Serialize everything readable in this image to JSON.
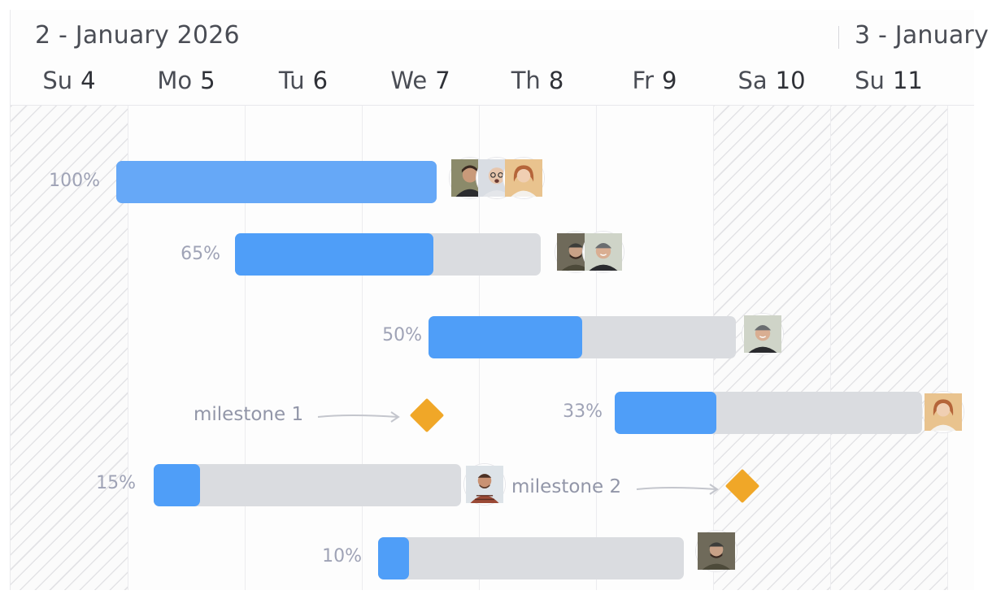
{
  "header": {
    "weeks": [
      {
        "label": "2 - January 2026"
      },
      {
        "label": "3 - January"
      }
    ],
    "days": [
      {
        "name": "Su",
        "num": "4",
        "weekend": true
      },
      {
        "name": "Mo",
        "num": "5",
        "weekend": false
      },
      {
        "name": "Tu",
        "num": "6",
        "weekend": false
      },
      {
        "name": "We",
        "num": "7",
        "weekend": false
      },
      {
        "name": "Th",
        "num": "8",
        "weekend": false
      },
      {
        "name": "Fr",
        "num": "9",
        "weekend": false
      },
      {
        "name": "Sa",
        "num": "10",
        "weekend": true
      },
      {
        "name": "Su",
        "num": "11",
        "weekend": true
      }
    ]
  },
  "tasks": [
    {
      "progress_label": "100%",
      "progress": 1.0,
      "avatars": [
        "avatar-dark-hair-man",
        "avatar-bald-glasses-man",
        "avatar-smiling-woman"
      ]
    },
    {
      "progress_label": "65%",
      "progress": 0.65,
      "avatars": [
        "avatar-beanie-man",
        "avatar-beanie-man-2"
      ]
    },
    {
      "progress_label": "50%",
      "progress": 0.5,
      "avatars": [
        "avatar-beanie-man-2"
      ]
    },
    {
      "progress_label": "33%",
      "progress": 0.33,
      "avatars": [
        "avatar-smiling-woman"
      ]
    },
    {
      "progress_label": "15%",
      "progress": 0.15,
      "avatars": [
        "avatar-plaid-shirt-man"
      ]
    },
    {
      "progress_label": "10%",
      "progress": 0.1,
      "avatars": [
        "avatar-beanie-man"
      ]
    }
  ],
  "milestones": [
    {
      "label": "milestone 1",
      "icon": "diamond-icon"
    },
    {
      "label": "milestone 2",
      "icon": "diamond-icon"
    }
  ],
  "colors": {
    "progress": "#4f9ef8",
    "progress_full": "#66a8f7",
    "track": "#dadce0",
    "milestone": "#f0a728",
    "label": "#9fa3b6"
  }
}
